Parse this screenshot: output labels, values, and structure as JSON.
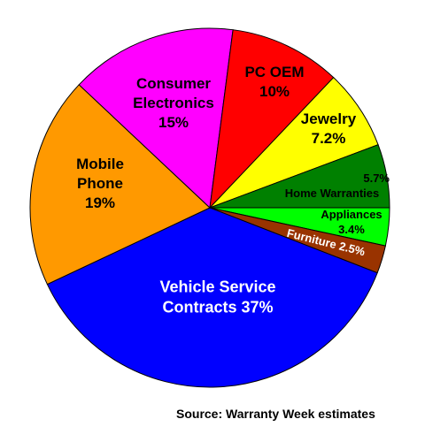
{
  "chart_data": {
    "type": "pie",
    "categories": [
      "Appliances",
      "Furniture",
      "Vehicle Service Contracts",
      "Mobile Phone",
      "Consumer Electronics",
      "PC OEM",
      "Jewelry",
      "Home Warranties"
    ],
    "values": [
      3.4,
      2.5,
      37,
      19,
      15,
      10,
      7.2,
      5.7
    ],
    "value_labels": [
      "3.4%",
      "2.5%",
      "37%",
      "19%",
      "15%",
      "10%",
      "7.2%",
      "5.7%"
    ],
    "colors": [
      "#00ff00",
      "#993300",
      "#0000ff",
      "#ff9900",
      "#ff00ff",
      "#ff0000",
      "#ffff00",
      "#008000"
    ],
    "source": "Source: Warranty Week estimates"
  }
}
